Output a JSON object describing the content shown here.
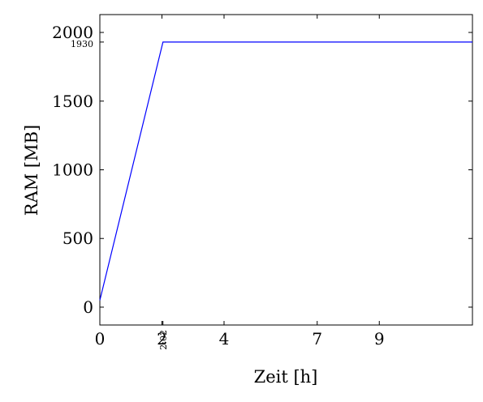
{
  "chart_data": {
    "type": "line",
    "xlabel": "Zeit [h]",
    "ylabel": "RAM [MB]",
    "xlim": [
      0,
      12
    ],
    "ylim": [
      -130,
      2130
    ],
    "x_ticks": [
      {
        "value": 0,
        "label": "0"
      },
      {
        "value": 2,
        "label": "2"
      },
      {
        "value": 4,
        "label": "4"
      },
      {
        "value": 7,
        "label": "7"
      },
      {
        "value": 9,
        "label": "9"
      }
    ],
    "y_ticks": [
      {
        "value": 0,
        "label": "0"
      },
      {
        "value": 500,
        "label": "500"
      },
      {
        "value": 1000,
        "label": "1000"
      },
      {
        "value": 1500,
        "label": "1500"
      },
      {
        "value": 2000,
        "label": "2000"
      }
    ],
    "annotations": [
      {
        "axis": "x",
        "value": 2.033,
        "label": "2:02",
        "rotated": true
      },
      {
        "axis": "y",
        "value": 1930,
        "label": "1930"
      }
    ],
    "series": [
      {
        "color": "#0000ff",
        "points": [
          [
            0,
            50
          ],
          [
            2.033,
            1930
          ],
          [
            12,
            1930
          ]
        ]
      }
    ],
    "grid": false,
    "legend": "none"
  }
}
